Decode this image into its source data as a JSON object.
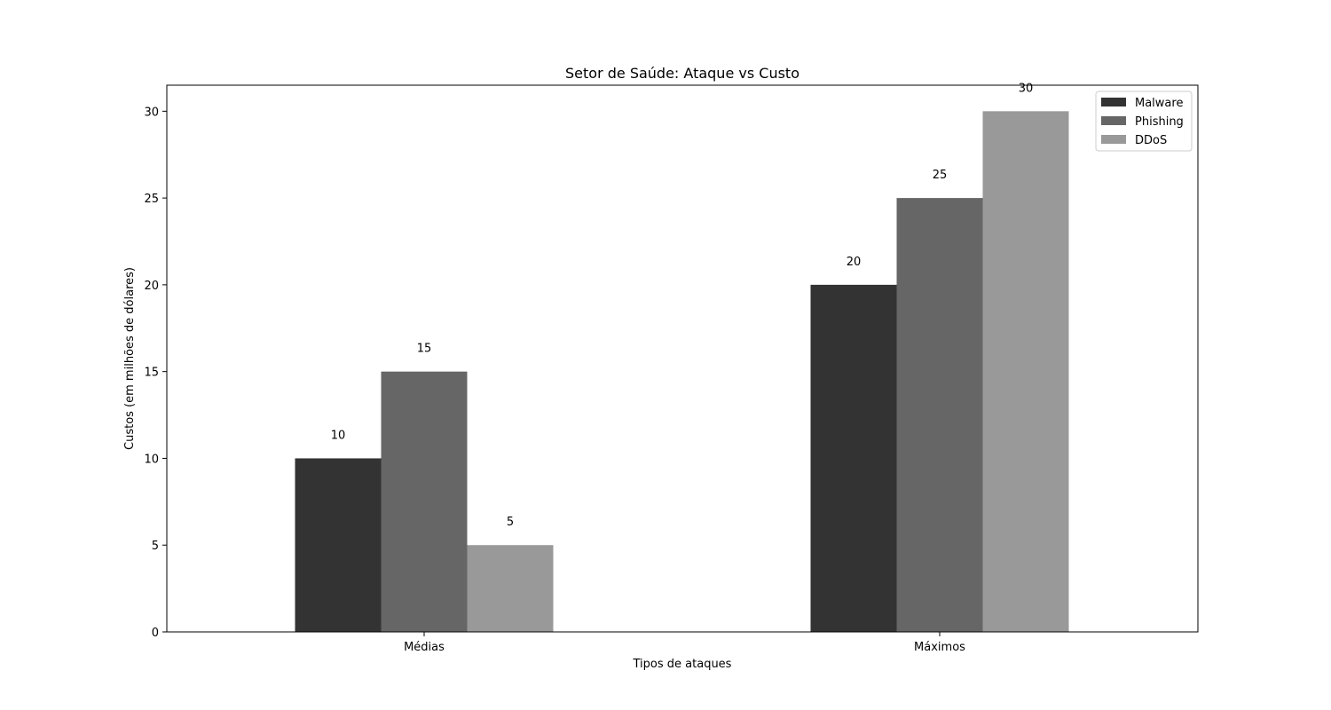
{
  "chart_data": {
    "type": "bar",
    "title": "Setor de Saúde: Ataque vs Custo",
    "xlabel": "Tipos de ataques",
    "ylabel": "Custos (em milhões de dólares)",
    "categories": [
      "Médias",
      "Máximos"
    ],
    "series": [
      {
        "name": "Malware",
        "values": [
          10,
          20
        ],
        "color": "#333333"
      },
      {
        "name": "Phishing",
        "values": [
          15,
          25
        ],
        "color": "#666666"
      },
      {
        "name": "DDoS",
        "values": [
          5,
          30
        ],
        "color": "#999999"
      }
    ],
    "ylim": [
      0,
      31.5
    ],
    "yticks": [
      0,
      5,
      10,
      15,
      20,
      25,
      30
    ],
    "grid": false,
    "legend_position": "top-right"
  }
}
